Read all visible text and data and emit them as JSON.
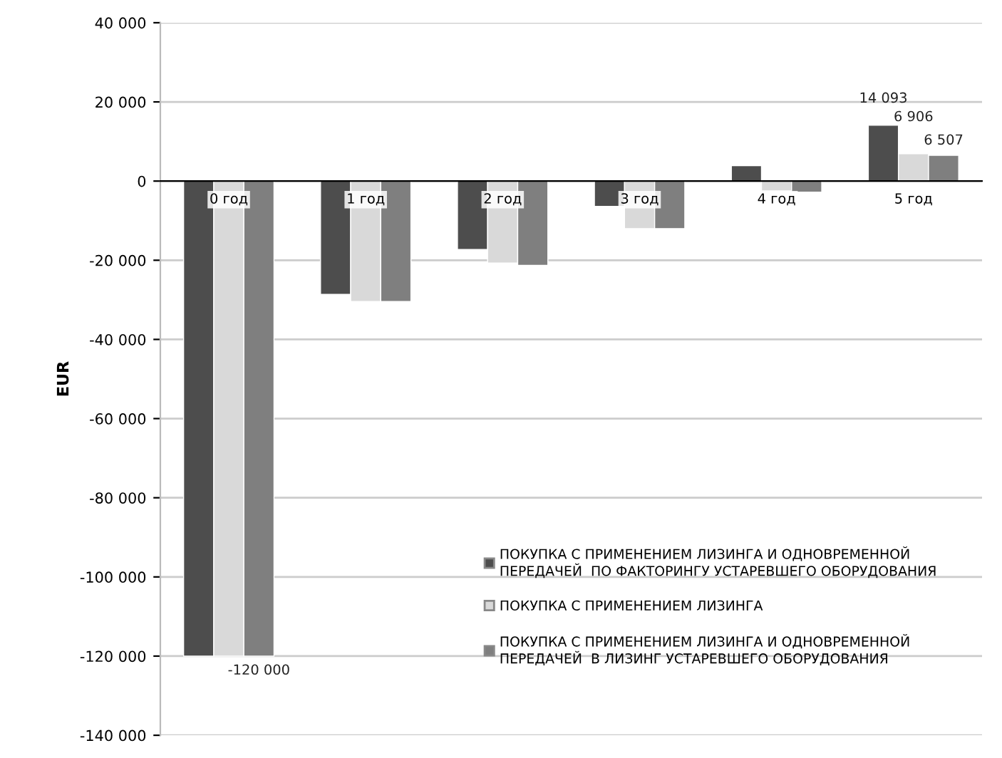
{
  "chart_data": {
    "type": "bar",
    "ylabel": "EUR",
    "categories": [
      "0 год",
      "1 год",
      "2 год",
      "3 год",
      "4 год",
      "5 год"
    ],
    "series": [
      {
        "name": "ПОКУПКА С ПРИМЕНЕНИЕМ ЛИЗИНГА И ОДНОВРЕМЕННОЙ\nПЕРЕДАЧЕЙ  ПО ФАКТОРИНГУ УСТАРЕВШЕГО ОБОРУДОВАНИЯ",
        "color": "#4d4d4d",
        "values": [
          -120000,
          -28600,
          -17300,
          -6400,
          3900,
          14093
        ],
        "value_labels": [
          null,
          null,
          null,
          null,
          null,
          "14 093"
        ]
      },
      {
        "name": "ПОКУПКА С ПРИМЕНЕНИЕМ ЛИЗИНГА",
        "color": "#d9d9d9",
        "values": [
          -120000,
          -30400,
          -20700,
          -12000,
          -2500,
          6906
        ],
        "value_labels": [
          null,
          null,
          null,
          null,
          null,
          "6 906"
        ]
      },
      {
        "name": "ПОКУПКА С ПРИМЕНЕНИЕМ ЛИЗИНГА И ОДНОВРЕМЕННОЙ\nПЕРЕДАЧЕЙ  В ЛИЗИНГ УСТАРЕВШЕГО ОБОРУДОВАНИЯ",
        "color": "#7f7f7f",
        "values": [
          -120000,
          -30400,
          -21300,
          -12000,
          -2800,
          6507
        ],
        "value_labels": [
          "-120 000",
          null,
          null,
          null,
          null,
          "6 507"
        ]
      }
    ],
    "ylim": [
      -140000,
      40000
    ],
    "yticks": [
      {
        "value": -140000,
        "label": "-140 000"
      },
      {
        "value": -120000,
        "label": "-120 000"
      },
      {
        "value": -100000,
        "label": "-100 000"
      },
      {
        "value": -80000,
        "label": "-80 000"
      },
      {
        "value": -60000,
        "label": "-60 000"
      },
      {
        "value": -40000,
        "label": "-40 000"
      },
      {
        "value": -20000,
        "label": "-20 000"
      },
      0,
      {
        "value": 20000,
        "label": "20 000"
      },
      {
        "value": 40000,
        "label": "40 000"
      }
    ],
    "grid": "y",
    "legend": "bottom right"
  }
}
